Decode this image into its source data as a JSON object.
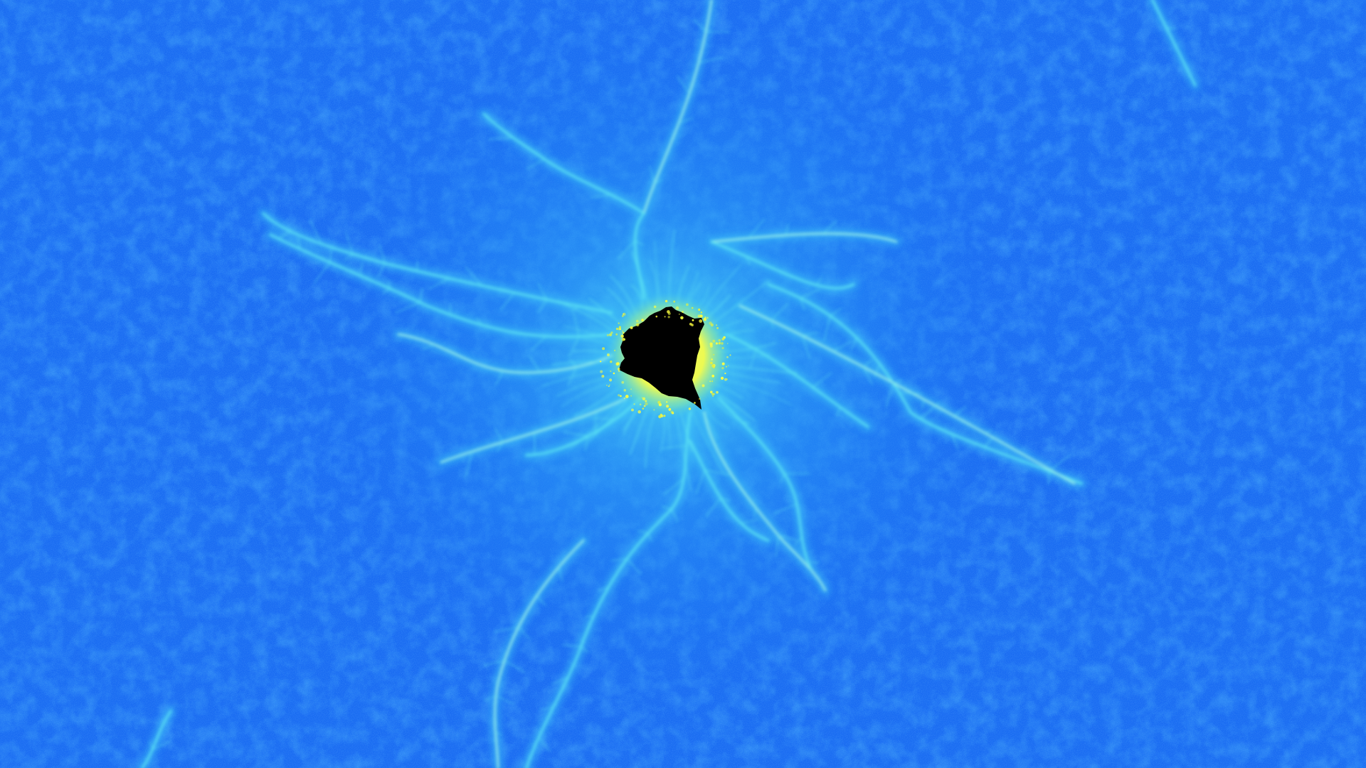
{
  "image": {
    "subject": "mandelbrot-minibrot",
    "colors": {
      "background": "#1a6cf2",
      "background_dark": "#0f5ae8",
      "glow_mid": "#2a9af6",
      "glow_light": "#3fc7f7",
      "filament": "#5fe6f2",
      "filament_bright": "#9ff3e8",
      "fringe": "#e8f23a",
      "fringe_hot": "#ffff40",
      "core": "#000000"
    }
  }
}
